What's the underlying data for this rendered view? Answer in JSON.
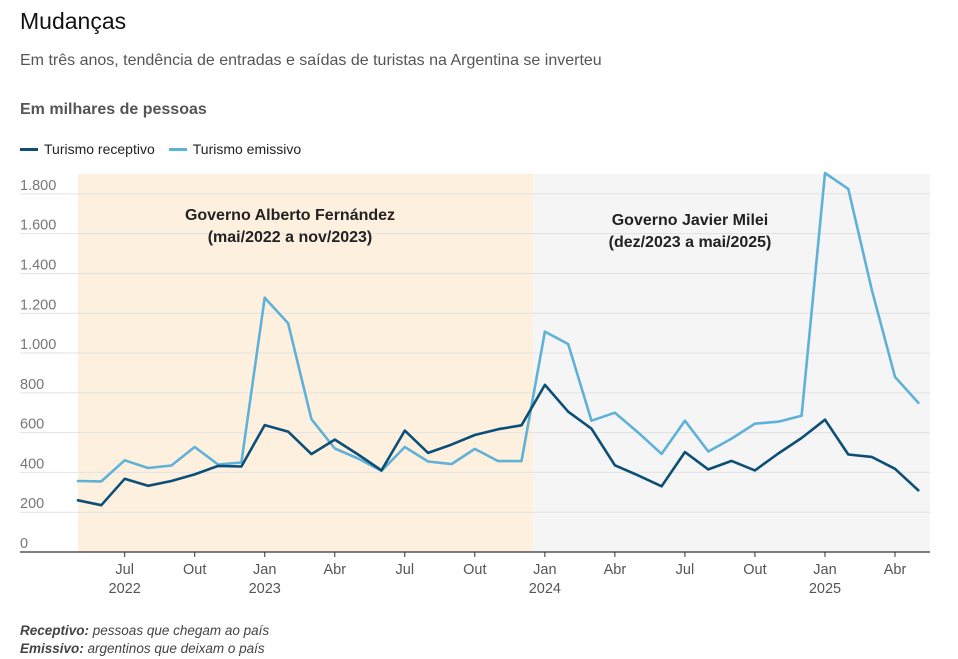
{
  "header": {
    "title": "Mudanças",
    "subtitle": "Em três anos, tendência de entradas e saídas de turistas na Argentina se inverteu",
    "unit": "Em milhares de pessoas"
  },
  "notes": [
    {
      "term": "Receptivo:",
      "text": " pessoas que chegam ao país"
    },
    {
      "term": "Emissivo:",
      "text": " argentinos que deixam o país"
    }
  ],
  "chart_data": {
    "type": "line",
    "x": [
      "2022-05",
      "2022-06",
      "2022-07",
      "2022-08",
      "2022-09",
      "2022-10",
      "2022-11",
      "2022-12",
      "2023-01",
      "2023-02",
      "2023-03",
      "2023-04",
      "2023-05",
      "2023-06",
      "2023-07",
      "2023-08",
      "2023-09",
      "2023-10",
      "2023-11",
      "2023-12",
      "2024-01",
      "2024-02",
      "2024-03",
      "2024-04",
      "2024-05",
      "2024-06",
      "2024-07",
      "2024-08",
      "2024-09",
      "2024-10",
      "2024-11",
      "2024-12",
      "2025-01",
      "2025-02",
      "2025-03",
      "2025-04",
      "2025-05"
    ],
    "series": [
      {
        "name": "Turismo receptivo",
        "color": "#0b4f77",
        "values": [
          260,
          235,
          368,
          333,
          357,
          390,
          433,
          430,
          638,
          605,
          492,
          565,
          490,
          410,
          610,
          498,
          540,
          588,
          617,
          637,
          840,
          705,
          620,
          436,
          385,
          330,
          502,
          415,
          458,
          410,
          495,
          573,
          665,
          490,
          478,
          418,
          310
        ]
      },
      {
        "name": "Turismo emissivo",
        "color": "#5fb1d8",
        "values": [
          357,
          355,
          461,
          422,
          435,
          528,
          440,
          450,
          1278,
          1150,
          668,
          520,
          470,
          408,
          528,
          455,
          442,
          518,
          457,
          457,
          1108,
          1045,
          660,
          700,
          600,
          493,
          660,
          505,
          570,
          645,
          655,
          685,
          1905,
          1825,
          1320,
          880,
          750
        ]
      }
    ],
    "y_ticks": [
      {
        "value": 0,
        "label": "0"
      },
      {
        "value": 200,
        "label": "200"
      },
      {
        "value": 400,
        "label": "400"
      },
      {
        "value": 600,
        "label": "600"
      },
      {
        "value": 800,
        "label": "800"
      },
      {
        "value": 1000,
        "label": "1.000"
      },
      {
        "value": 1200,
        "label": "1.200"
      },
      {
        "value": 1400,
        "label": "1.400"
      },
      {
        "value": 1600,
        "label": "1.600"
      },
      {
        "value": 1800,
        "label": "1.800"
      }
    ],
    "ylim": [
      0,
      1900
    ],
    "x_ticks": [
      {
        "index": 2,
        "label": "Jul",
        "year": "2022"
      },
      {
        "index": 5,
        "label": "Out",
        "year": ""
      },
      {
        "index": 8,
        "label": "Jan",
        "year": "2023"
      },
      {
        "index": 11,
        "label": "Abr",
        "year": ""
      },
      {
        "index": 14,
        "label": "Jul",
        "year": ""
      },
      {
        "index": 17,
        "label": "Out",
        "year": ""
      },
      {
        "index": 20,
        "label": "Jan",
        "year": "2024"
      },
      {
        "index": 23,
        "label": "Abr",
        "year": ""
      },
      {
        "index": 26,
        "label": "Jul",
        "year": ""
      },
      {
        "index": 29,
        "label": "Out",
        "year": ""
      },
      {
        "index": 32,
        "label": "Jan",
        "year": "2025"
      },
      {
        "index": 35,
        "label": "Abr",
        "year": ""
      }
    ],
    "periods": [
      {
        "label_line1": "Governo Alberto Fernández",
        "label_line2": "(mai/2022 a nov/2023)",
        "start": 0,
        "end": 19,
        "color": "#fdf0df"
      },
      {
        "label_line1": "Governo Javier Milei",
        "label_line2": "(dez/2023 a mai/2025)",
        "start": 19,
        "end": 36,
        "color": "#f5f5f5"
      }
    ],
    "grid": true,
    "legend_position": "top-left"
  }
}
